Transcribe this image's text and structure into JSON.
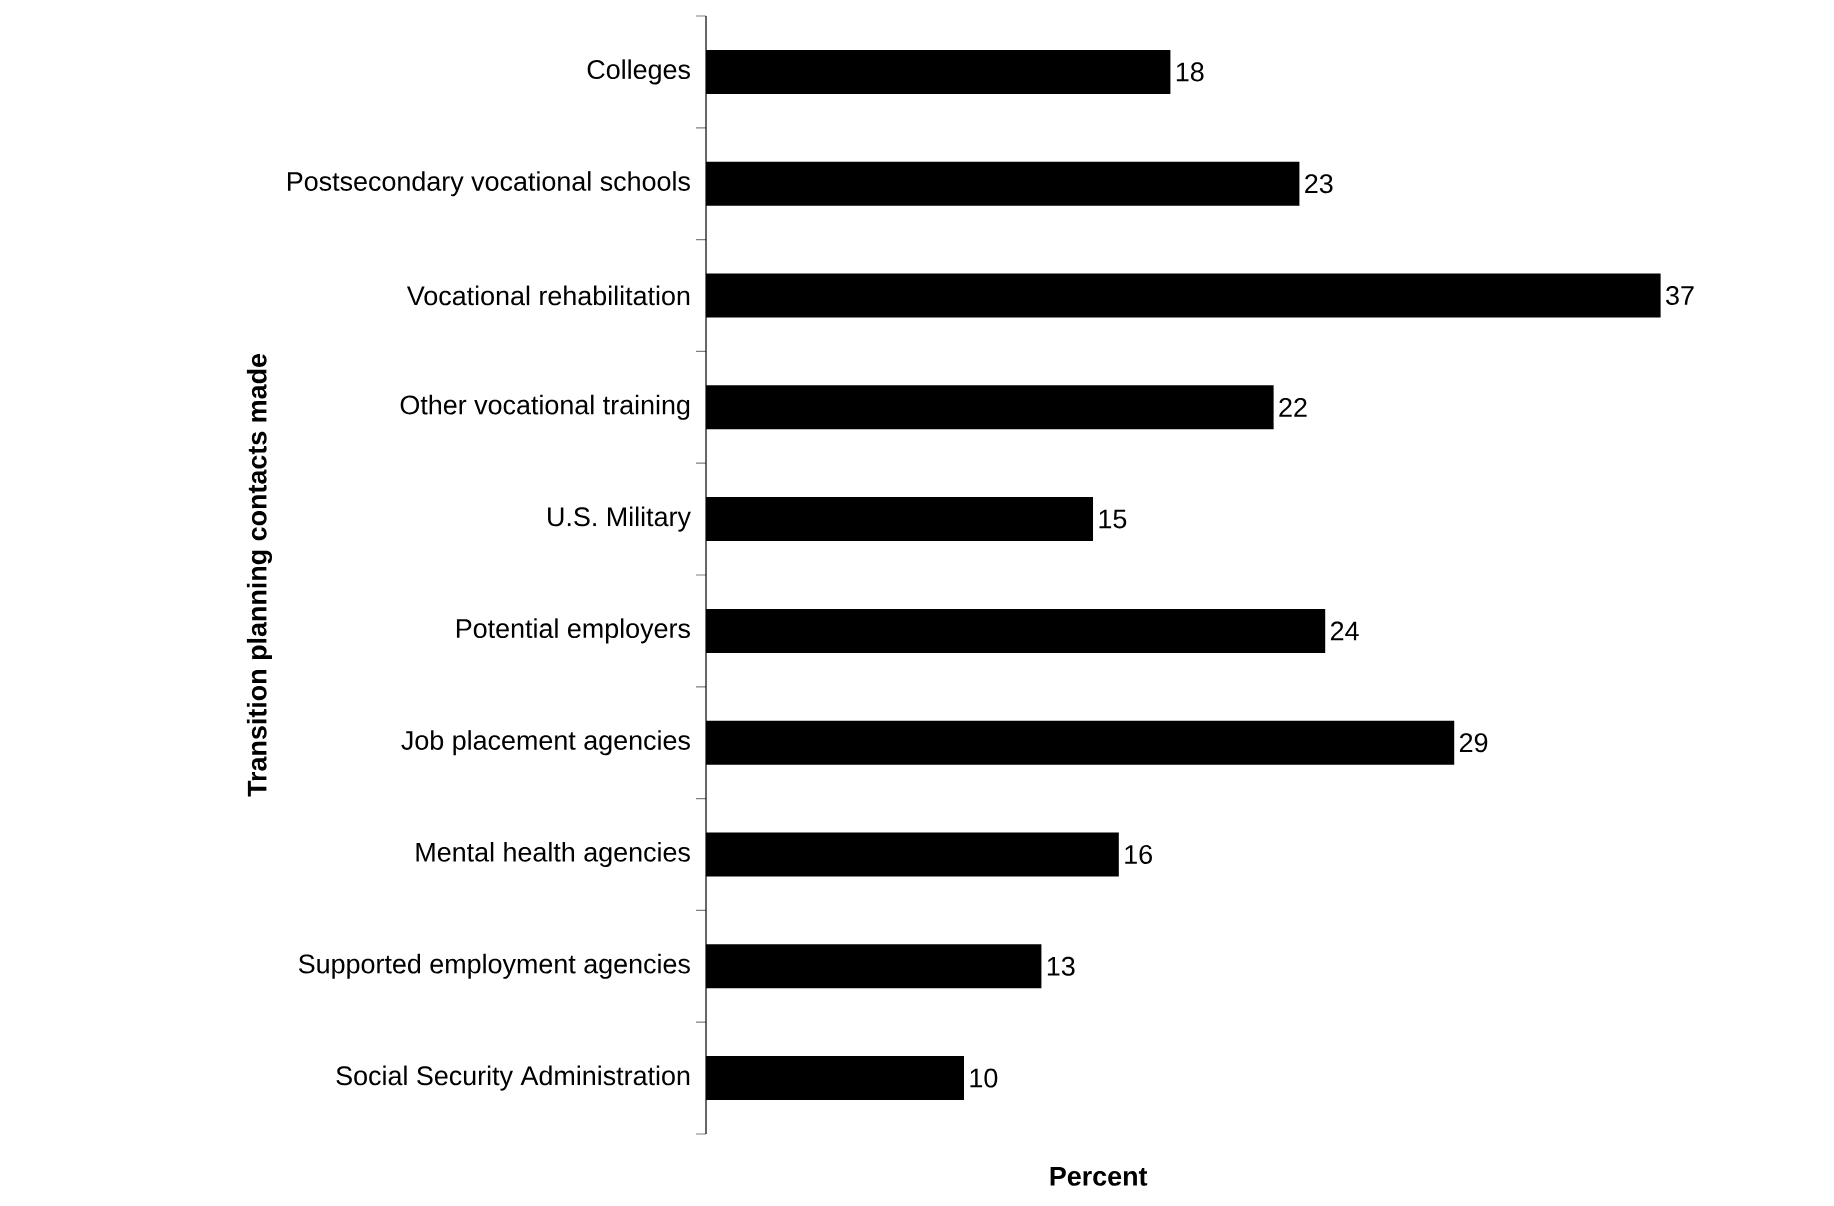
{
  "chart_data": {
    "type": "bar",
    "orientation": "horizontal",
    "ylabel": "Transition planning contacts made",
    "xlabel": "Percent",
    "categories": [
      "Colleges",
      "Postsecondary vocational schools",
      "Vocational rehabilitation",
      "Other vocational training",
      "U.S. Military",
      "Potential employers",
      "Job placement agencies",
      "Mental health agencies",
      "Supported employment agencies",
      "Social Security Administration"
    ],
    "values": [
      18,
      23,
      37,
      22,
      15,
      24,
      29,
      16,
      13,
      10
    ],
    "color": "#000000",
    "tick_labels": "y",
    "data_labels": true
  }
}
